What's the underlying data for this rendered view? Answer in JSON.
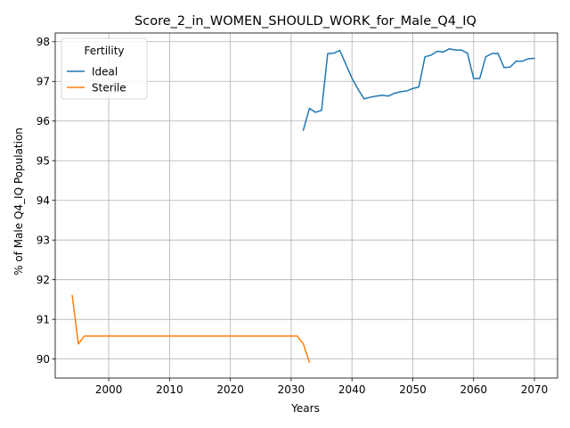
{
  "chart_data": {
    "type": "line",
    "title": "Score_2_in_WOMEN_SHOULD_WORK_for_Male_Q4_IQ",
    "xlabel": "Years",
    "ylabel": "% of Male Q4_IQ Population",
    "xlim": [
      1991.2,
      2073.8
    ],
    "ylim": [
      89.52,
      98.22
    ],
    "xticks": [
      2000,
      2010,
      2020,
      2030,
      2040,
      2050,
      2060,
      2070
    ],
    "yticks": [
      90,
      91,
      92,
      93,
      94,
      95,
      96,
      97,
      98
    ],
    "grid": true,
    "legend": {
      "title": "Fertility",
      "placement": "top-left"
    },
    "series": [
      {
        "name": "Ideal",
        "color": "#1f77b4",
        "x": [
          2032,
          2033,
          2034,
          2035,
          2036,
          2037,
          2038,
          2039,
          2040,
          2041,
          2042,
          2043,
          2044,
          2045,
          2046,
          2047,
          2048,
          2049,
          2050,
          2051,
          2052,
          2053,
          2054,
          2055,
          2056,
          2057,
          2058,
          2059,
          2060,
          2061,
          2062,
          2063,
          2064,
          2065,
          2066,
          2067,
          2068,
          2069,
          2070
        ],
        "y": [
          95.77,
          96.32,
          96.22,
          96.27,
          97.7,
          97.71,
          97.78,
          97.43,
          97.08,
          96.8,
          96.56,
          96.6,
          96.63,
          96.65,
          96.63,
          96.7,
          96.74,
          96.76,
          96.82,
          96.86,
          97.62,
          97.66,
          97.76,
          97.74,
          97.82,
          97.79,
          97.79,
          97.71,
          97.07,
          97.07,
          97.62,
          97.7,
          97.71,
          97.35,
          97.36,
          97.51,
          97.51,
          97.57,
          97.58
        ]
      },
      {
        "name": "Sterile",
        "color": "#ff7f0e",
        "x": [
          1994,
          1995,
          1996,
          1997,
          1998,
          1999,
          2000,
          2001,
          2002,
          2003,
          2004,
          2005,
          2006,
          2007,
          2008,
          2009,
          2010,
          2011,
          2012,
          2013,
          2014,
          2015,
          2016,
          2017,
          2018,
          2019,
          2020,
          2021,
          2022,
          2023,
          2024,
          2025,
          2026,
          2027,
          2028,
          2029,
          2030,
          2031,
          2032,
          2033
        ],
        "y": [
          91.6,
          90.38,
          90.58,
          90.58,
          90.58,
          90.58,
          90.58,
          90.58,
          90.58,
          90.58,
          90.58,
          90.58,
          90.58,
          90.58,
          90.58,
          90.58,
          90.58,
          90.58,
          90.58,
          90.58,
          90.58,
          90.58,
          90.58,
          90.58,
          90.58,
          90.58,
          90.58,
          90.58,
          90.58,
          90.58,
          90.58,
          90.58,
          90.58,
          90.58,
          90.58,
          90.58,
          90.58,
          90.58,
          90.38,
          89.92
        ]
      }
    ]
  }
}
